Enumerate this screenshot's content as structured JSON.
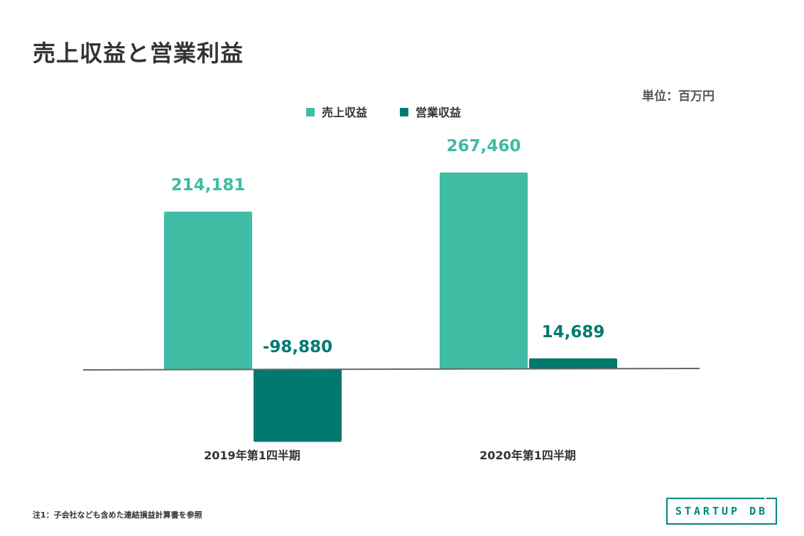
{
  "title": "売上収益と営業利益",
  "unit_label": "単位：百万円",
  "note": "注1：子会社なども含めた連結損益計算書を参照",
  "logo_text": "STARTUP DB",
  "colors": {
    "revenue": "#3ebca4",
    "operating": "#00796f",
    "revenue_label": "#3ebca4",
    "operating_label": "#00796f",
    "baseline": "#666666"
  },
  "chart_data": {
    "type": "bar",
    "categories": [
      "2019年第1四半期",
      "2020年第1四半期"
    ],
    "series": [
      {
        "name": "売上収益",
        "values": [
          214181,
          267460
        ],
        "labels": [
          "214,181",
          "267,460"
        ]
      },
      {
        "name": "営業収益",
        "values": [
          -98880,
          14689
        ],
        "labels": [
          "-98,880",
          "14,689"
        ]
      }
    ],
    "legend_position": "top-center",
    "grid": false
  }
}
